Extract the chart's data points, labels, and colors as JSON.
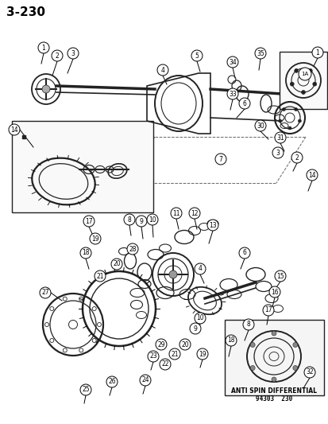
{
  "title": "3–230",
  "background_color": "#ffffff",
  "text_color": "#000000",
  "line_color": "#000000",
  "footer_text": "94303  230",
  "anti_spin_label": "ANTI SPIN DIFFERENTIAL",
  "diagram_color": "#222222",
  "figsize": [
    4.14,
    5.33
  ],
  "dpi": 100
}
